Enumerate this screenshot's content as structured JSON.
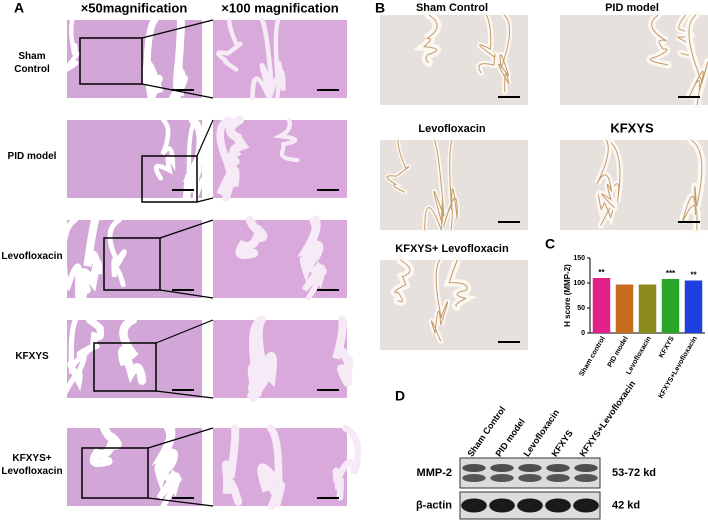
{
  "panel_a": {
    "label": "A",
    "col_headers": [
      "×50magnification",
      "×100 magnification"
    ],
    "rows": [
      "Sham Control",
      "PID model",
      "Levofloxacin",
      "KFXYS",
      "KFXYS+ Levofloxacin"
    ]
  },
  "panel_b": {
    "label": "B",
    "images": [
      "Sham Control",
      "PID model",
      "Levofloxacin",
      "KFXYS",
      "KFXYS+ Levofloxacin"
    ]
  },
  "chart_data": {
    "type": "bar",
    "label": "C",
    "y_label": "H score (MMP-2)",
    "categories": [
      "Sham control",
      "PID  model",
      "Levofloxacin",
      "KFXYS",
      "KFXYS+Levofloxacin"
    ],
    "values": [
      110,
      97,
      97,
      108,
      105
    ],
    "colors": [
      "#e0218a",
      "#c86a1e",
      "#8a8a1a",
      "#2aa52a",
      "#1f3fe0"
    ],
    "significance": [
      "**",
      null,
      null,
      "***",
      "**"
    ],
    "ylim": [
      0,
      150
    ],
    "yticks": [
      0,
      50,
      100,
      150
    ]
  },
  "panel_d": {
    "label": "D",
    "lanes": [
      "Sham Control",
      "PID model",
      "Levofloxacin",
      "KFXYS",
      "KFXYS+Levofloxacin"
    ],
    "bands": [
      {
        "name": "MMP-2",
        "size": "53-72 kd"
      },
      {
        "name": "β-actin",
        "size": "42 kd"
      }
    ]
  }
}
